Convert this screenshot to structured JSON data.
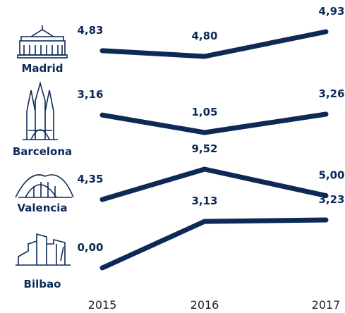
{
  "chart_data": {
    "type": "line",
    "categories": [
      "2015",
      "2016",
      "2017"
    ],
    "series": [
      {
        "name": "Madrid",
        "color": "#0d2a57",
        "values": [
          4.83,
          4.8,
          4.93
        ],
        "value_labels": [
          "4,83",
          "4,80",
          "4,93"
        ]
      },
      {
        "name": "Barcelona",
        "color": "#0d2a57",
        "values": [
          3.16,
          1.05,
          3.26
        ],
        "value_labels": [
          "3,16",
          "1,05",
          "3,26"
        ]
      },
      {
        "name": "Valencia",
        "color": "#0d2a57",
        "values": [
          4.35,
          9.52,
          5.0
        ],
        "value_labels": [
          "4,35",
          "9,52",
          "5,00"
        ]
      },
      {
        "name": "Bilbao",
        "color": "#0d2a57",
        "values": [
          0.0,
          3.13,
          3.23
        ],
        "value_labels": [
          "0,00",
          "3,13",
          "3,23"
        ]
      }
    ]
  }
}
